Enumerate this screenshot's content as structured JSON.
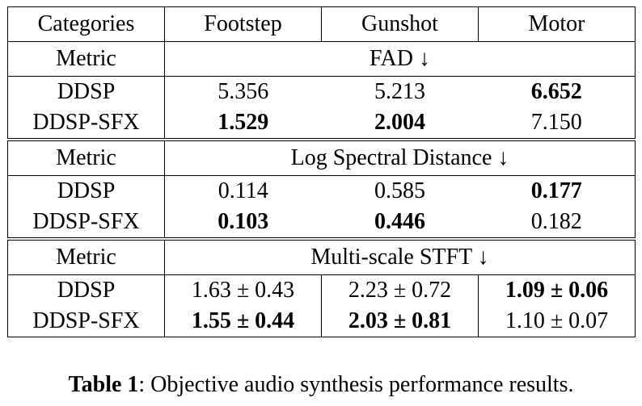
{
  "table": {
    "header": [
      "Categories",
      "Footstep",
      "Gunshot",
      "Motor"
    ],
    "sections": [
      {
        "metric_label": "Metric",
        "metric_name": "FAD ↓",
        "rows": [
          {
            "method": "DDSP",
            "values": [
              "5.356",
              "5.213",
              "6.652"
            ],
            "bold": [
              false,
              false,
              true
            ]
          },
          {
            "method": "DDSP-SFX",
            "values": [
              "1.529",
              "2.004",
              "7.150"
            ],
            "bold": [
              true,
              true,
              false
            ]
          }
        ]
      },
      {
        "metric_label": "Metric",
        "metric_name": "Log Spectral Distance ↓",
        "rows": [
          {
            "method": "DDSP",
            "values": [
              "0.114",
              "0.585",
              "0.177"
            ],
            "bold": [
              false,
              false,
              true
            ]
          },
          {
            "method": "DDSP-SFX",
            "values": [
              "0.103",
              "0.446",
              "0.182"
            ],
            "bold": [
              true,
              true,
              false
            ]
          }
        ]
      },
      {
        "metric_label": "Metric",
        "metric_name": "Multi-scale STFT ↓",
        "rows": [
          {
            "method": "DDSP",
            "values": [
              "1.63 ± 0.43",
              "2.23 ± 0.72",
              "1.09 ± 0.06"
            ],
            "bold": [
              false,
              false,
              true
            ]
          },
          {
            "method": "DDSP-SFX",
            "values": [
              "1.55 ± 0.44",
              "2.03 ± 0.81",
              "1.10 ± 0.07"
            ],
            "bold": [
              true,
              true,
              false
            ]
          }
        ]
      }
    ]
  },
  "caption": {
    "label": "Table 1",
    "text": ": Objective audio synthesis performance results."
  }
}
